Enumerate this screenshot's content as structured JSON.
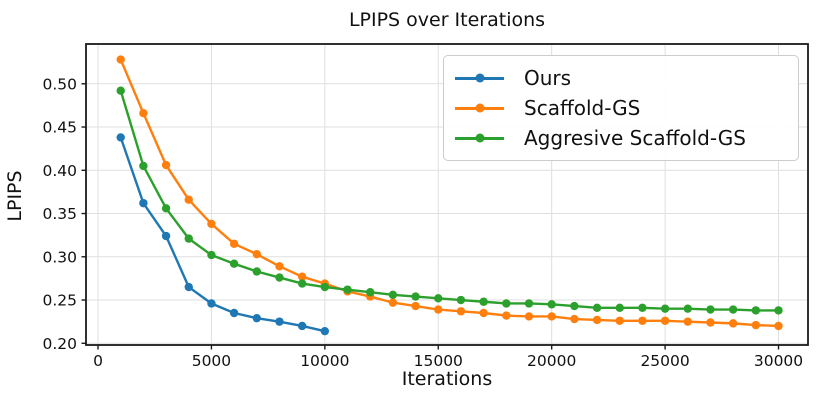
{
  "figure": {
    "title": "LPIPS over Iterations",
    "xlabel": "Iterations",
    "ylabel": "LPIPS"
  },
  "chart_data": {
    "type": "line",
    "title": "LPIPS over Iterations",
    "xlabel": "Iterations",
    "ylabel": "LPIPS",
    "grid": true,
    "legend_position": "upper right",
    "marker": "o",
    "xlim": [
      -530,
      31300
    ],
    "ylim": [
      0.198,
      0.546
    ],
    "xticks": [
      0,
      5000,
      10000,
      15000,
      20000,
      25000,
      30000
    ],
    "xtick_labels": [
      "0",
      "5000",
      "10000",
      "15000",
      "20000",
      "25000",
      "30000"
    ],
    "yticks": [
      0.2,
      0.25,
      0.3,
      0.35,
      0.4,
      0.45,
      0.5
    ],
    "ytick_labels": [
      "0.20",
      "0.25",
      "0.30",
      "0.35",
      "0.40",
      "0.45",
      "0.50"
    ],
    "series": [
      {
        "name": "Ours",
        "color": "#1f77b4",
        "x": [
          1000,
          2000,
          3000,
          4000,
          5000,
          6000,
          7000,
          8000,
          9000,
          10000
        ],
        "values": [
          0.438,
          0.362,
          0.324,
          0.265,
          0.246,
          0.235,
          0.229,
          0.225,
          0.22,
          0.214
        ]
      },
      {
        "name": "Scaffold-GS",
        "color": "#ff7f0e",
        "x": [
          1000,
          2000,
          3000,
          4000,
          5000,
          6000,
          7000,
          8000,
          9000,
          10000,
          11000,
          12000,
          13000,
          14000,
          15000,
          16000,
          17000,
          18000,
          19000,
          20000,
          21000,
          22000,
          23000,
          24000,
          25000,
          26000,
          27000,
          28000,
          29000,
          30000
        ],
        "values": [
          0.528,
          0.466,
          0.406,
          0.366,
          0.338,
          0.315,
          0.303,
          0.289,
          0.277,
          0.269,
          0.26,
          0.254,
          0.247,
          0.243,
          0.239,
          0.237,
          0.235,
          0.232,
          0.231,
          0.231,
          0.228,
          0.227,
          0.226,
          0.226,
          0.226,
          0.225,
          0.224,
          0.223,
          0.221,
          0.22
        ]
      },
      {
        "name": "Aggresive Scaffold-GS",
        "color": "#2ca02c",
        "x": [
          1000,
          2000,
          3000,
          4000,
          5000,
          6000,
          7000,
          8000,
          9000,
          10000,
          11000,
          12000,
          13000,
          14000,
          15000,
          16000,
          17000,
          18000,
          19000,
          20000,
          21000,
          22000,
          23000,
          24000,
          25000,
          26000,
          27000,
          28000,
          29000,
          30000
        ],
        "values": [
          0.492,
          0.405,
          0.356,
          0.321,
          0.302,
          0.292,
          0.283,
          0.276,
          0.269,
          0.265,
          0.262,
          0.259,
          0.256,
          0.254,
          0.252,
          0.25,
          0.248,
          0.246,
          0.246,
          0.245,
          0.243,
          0.241,
          0.241,
          0.241,
          0.24,
          0.24,
          0.239,
          0.239,
          0.238,
          0.238
        ]
      }
    ],
    "style": {
      "grid_color": "#dfdfdf",
      "spine_color": "#1a1a1a",
      "tick_color": "#1a1a1a",
      "text_color": "#111111"
    }
  }
}
